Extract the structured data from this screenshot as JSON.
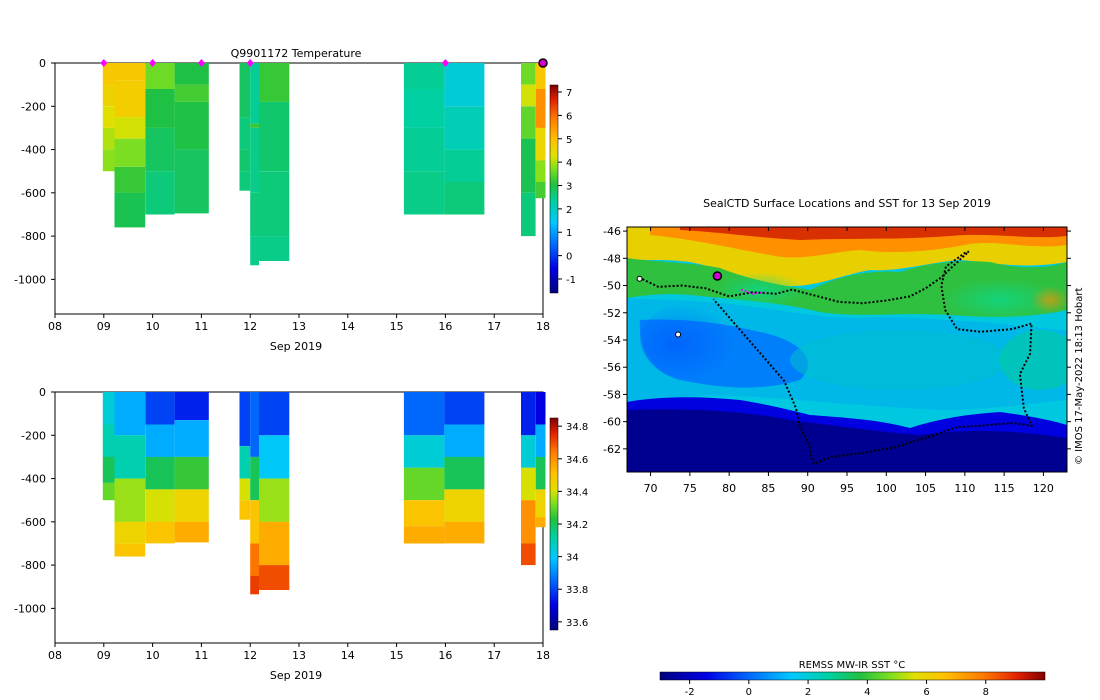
{
  "chart_data": [
    {
      "type": "heatmap",
      "name": "temperature-section",
      "title": "Q9901172  Temperature",
      "xlabel": "Sep 2019",
      "x_ticks": [
        "08",
        "09",
        "10",
        "11",
        "12",
        "13",
        "14",
        "15",
        "16",
        "17",
        "18"
      ],
      "x_range": [
        8,
        18
      ],
      "y_ticks": [
        0,
        -200,
        -400,
        -600,
        -800,
        -1000
      ],
      "y_range": [
        -1160,
        0
      ],
      "colorbar": {
        "min": -1.6,
        "max": 7.3,
        "ticks": [
          7,
          6,
          5,
          4,
          3,
          2,
          1,
          0,
          -1
        ],
        "labels": [
          "7",
          "6",
          "5",
          "4",
          "3",
          "2",
          "1",
          "0",
          "-1"
        ]
      },
      "markers_days": [
        9.0,
        10.0,
        11.0,
        12.0,
        16.0
      ],
      "current_marker_day": 18.0,
      "profiles": [
        {
          "x0": 8.98,
          "x1": 9.22,
          "depth": 500,
          "layers": [
            [
              0,
              4.8
            ],
            [
              100,
              4.6
            ],
            [
              200,
              4.3
            ],
            [
              300,
              4.0
            ],
            [
              400,
              3.8
            ]
          ]
        },
        {
          "x0": 9.22,
          "x1": 9.85,
          "depth": 760,
          "layers": [
            [
              0,
              4.8
            ],
            [
              80,
              4.7
            ],
            [
              250,
              4.2
            ],
            [
              350,
              3.7
            ],
            [
              480,
              3.2
            ],
            [
              600,
              2.9
            ]
          ]
        },
        {
          "x0": 9.85,
          "x1": 10.45,
          "depth": 700,
          "layers": [
            [
              0,
              3.6
            ],
            [
              120,
              3.0
            ],
            [
              300,
              2.8
            ],
            [
              500,
              2.6
            ]
          ]
        },
        {
          "x0": 10.45,
          "x1": 11.15,
          "depth": 695,
          "layers": [
            [
              0,
              3.0
            ],
            [
              100,
              3.3
            ],
            [
              180,
              3.0
            ],
            [
              400,
              2.8
            ]
          ]
        },
        {
          "x0": 11.78,
          "x1": 12.0,
          "depth": 590,
          "layers": [
            [
              0,
              2.8
            ],
            [
              250,
              2.6
            ],
            [
              400,
              2.7
            ],
            [
              500,
              2.6
            ]
          ]
        },
        {
          "x0": 12.0,
          "x1": 12.18,
          "depth": 935,
          "layers": [
            [
              0,
              2.4
            ],
            [
              280,
              3.2
            ],
            [
              300,
              2.5
            ],
            [
              600,
              2.6
            ],
            [
              800,
              2.5
            ]
          ]
        },
        {
          "x0": 12.18,
          "x1": 12.8,
          "depth": 915,
          "layers": [
            [
              0,
              3.2
            ],
            [
              180,
              2.7
            ],
            [
              500,
              2.6
            ],
            [
              800,
              2.5
            ]
          ]
        },
        {
          "x0": 15.15,
          "x1": 15.98,
          "depth": 700,
          "layers": [
            [
              0,
              2.4
            ],
            [
              120,
              2.3
            ],
            [
              300,
              2.4
            ],
            [
              500,
              2.5
            ]
          ]
        },
        {
          "x0": 15.98,
          "x1": 16.8,
          "depth": 700,
          "layers": [
            [
              0,
              1.8
            ],
            [
              200,
              2.1
            ],
            [
              400,
              2.4
            ],
            [
              550,
              2.6
            ]
          ]
        },
        {
          "x0": 17.55,
          "x1": 17.85,
          "depth": 800,
          "layers": [
            [
              0,
              3.6
            ],
            [
              100,
              4.2
            ],
            [
              200,
              3.5
            ],
            [
              350,
              2.9
            ],
            [
              600,
              2.6
            ]
          ]
        },
        {
          "x0": 17.85,
          "x1": 18.05,
          "depth": 625,
          "layers": [
            [
              0,
              4.8
            ],
            [
              120,
              5.6
            ],
            [
              300,
              4.5
            ],
            [
              450,
              3.8
            ],
            [
              550,
              3.3
            ]
          ]
        }
      ]
    },
    {
      "type": "heatmap",
      "name": "salinity-section",
      "title": "",
      "xlabel": "Sep 2019",
      "x_ticks": [
        "08",
        "09",
        "10",
        "11",
        "12",
        "13",
        "14",
        "15",
        "16",
        "17",
        "18"
      ],
      "x_range": [
        8,
        18
      ],
      "y_ticks": [
        0,
        -200,
        -400,
        -600,
        -800,
        -1000
      ],
      "y_range": [
        -1160,
        0
      ],
      "colorbar": {
        "min": 33.55,
        "max": 34.85,
        "ticks": [
          34.8,
          34.6,
          34.4,
          34.2,
          34.0,
          33.8,
          33.6
        ],
        "labels": [
          "34.8",
          "34.6",
          "34.4",
          "34.2",
          "34",
          "33.8",
          "33.6"
        ]
      },
      "profiles": [
        {
          "x0": 8.98,
          "x1": 9.22,
          "depth": 500,
          "layers": [
            [
              0,
              34.05
            ],
            [
              150,
              34.1
            ],
            [
              300,
              34.2
            ],
            [
              420,
              34.3
            ]
          ]
        },
        {
          "x0": 9.22,
          "x1": 9.85,
          "depth": 760,
          "layers": [
            [
              0,
              33.95
            ],
            [
              200,
              34.1
            ],
            [
              400,
              34.35
            ],
            [
              600,
              34.45
            ],
            [
              700,
              34.5
            ]
          ]
        },
        {
          "x0": 9.85,
          "x1": 10.45,
          "depth": 700,
          "layers": [
            [
              0,
              33.8
            ],
            [
              150,
              33.95
            ],
            [
              300,
              34.2
            ],
            [
              450,
              34.4
            ],
            [
              600,
              34.5
            ]
          ]
        },
        {
          "x0": 10.45,
          "x1": 11.15,
          "depth": 695,
          "layers": [
            [
              0,
              33.75
            ],
            [
              130,
              33.95
            ],
            [
              300,
              34.25
            ],
            [
              450,
              34.45
            ],
            [
              600,
              34.55
            ]
          ]
        },
        {
          "x0": 11.78,
          "x1": 12.0,
          "depth": 590,
          "layers": [
            [
              0,
              33.8
            ],
            [
              250,
              34.1
            ],
            [
              400,
              34.4
            ],
            [
              500,
              34.5
            ]
          ]
        },
        {
          "x0": 12.0,
          "x1": 12.18,
          "depth": 935,
          "layers": [
            [
              0,
              33.85
            ],
            [
              300,
              34.2
            ],
            [
              500,
              34.5
            ],
            [
              700,
              34.65
            ],
            [
              850,
              34.72
            ]
          ]
        },
        {
          "x0": 12.18,
          "x1": 12.8,
          "depth": 915,
          "layers": [
            [
              0,
              33.8
            ],
            [
              200,
              34.0
            ],
            [
              400,
              34.35
            ],
            [
              600,
              34.55
            ],
            [
              800,
              34.7
            ]
          ]
        },
        {
          "x0": 15.15,
          "x1": 15.98,
          "depth": 700,
          "layers": [
            [
              0,
              33.85
            ],
            [
              200,
              34.05
            ],
            [
              350,
              34.3
            ],
            [
              500,
              34.5
            ],
            [
              620,
              34.55
            ]
          ]
        },
        {
          "x0": 15.98,
          "x1": 16.8,
          "depth": 700,
          "layers": [
            [
              0,
              33.8
            ],
            [
              150,
              33.95
            ],
            [
              300,
              34.2
            ],
            [
              450,
              34.45
            ],
            [
              600,
              34.55
            ]
          ]
        },
        {
          "x0": 17.55,
          "x1": 17.85,
          "depth": 800,
          "layers": [
            [
              0,
              33.75
            ],
            [
              200,
              34.05
            ],
            [
              350,
              34.4
            ],
            [
              500,
              34.6
            ],
            [
              700,
              34.7
            ]
          ]
        },
        {
          "x0": 17.85,
          "x1": 18.05,
          "depth": 625,
          "layers": [
            [
              0,
              33.7
            ],
            [
              150,
              33.95
            ],
            [
              300,
              34.2
            ],
            [
              450,
              34.45
            ],
            [
              580,
              34.55
            ]
          ]
        }
      ]
    },
    {
      "type": "heatmap",
      "name": "sst-map",
      "title": "SealCTD Surface Locations and SST for 13 Sep 2019",
      "x_ticks": [
        "70",
        "75",
        "80",
        "85",
        "90",
        "95",
        "100",
        "105",
        "110",
        "115",
        "120"
      ],
      "x_range": [
        67,
        123
      ],
      "y_ticks": [
        "-46",
        "-48",
        "-50",
        "-52",
        "-54",
        "-56",
        "-58",
        "-60",
        "-62"
      ],
      "y_range": [
        -63.7,
        -45.7
      ],
      "colorbar": {
        "title": "REMSS MW-IR SST °C",
        "min": -3,
        "max": 10,
        "ticks": [
          "-2",
          "0",
          "2",
          "4",
          "6",
          "8"
        ]
      },
      "track": [
        [
          68.5,
          -49.4
        ],
        [
          71,
          -50.1
        ],
        [
          74,
          -50
        ],
        [
          77,
          -50.2
        ],
        [
          80,
          -50.8
        ],
        [
          83,
          -50.5
        ],
        [
          86,
          -50.6
        ],
        [
          88,
          -50.3
        ],
        [
          90,
          -50.6
        ],
        [
          92,
          -50.9
        ],
        [
          94,
          -51.2
        ],
        [
          97,
          -51.3
        ],
        [
          100,
          -51.1
        ],
        [
          103,
          -50.8
        ],
        [
          105,
          -50.2
        ],
        [
          107,
          -49.4
        ],
        [
          109,
          -48.3
        ],
        [
          110.5,
          -47.5
        ],
        [
          110,
          -47.6
        ],
        [
          107.6,
          -48.6
        ],
        [
          107,
          -50
        ],
        [
          107.5,
          -51.8
        ],
        [
          109,
          -53.2
        ],
        [
          112,
          -53.4
        ],
        [
          116,
          -53.2
        ],
        [
          118.5,
          -52.8
        ],
        [
          118.3,
          -55
        ],
        [
          117,
          -56.5
        ],
        [
          117.5,
          -59
        ],
        [
          118.5,
          -60.3
        ],
        [
          116,
          -60.1
        ],
        [
          112,
          -60.3
        ],
        [
          109,
          -60.4
        ],
        [
          106,
          -61
        ],
        [
          101,
          -61.9
        ],
        [
          97,
          -62.3
        ],
        [
          93,
          -62.6
        ],
        [
          90.8,
          -63.1
        ],
        [
          90.4,
          -62.5
        ],
        [
          90.2,
          -61.8
        ],
        [
          89.8,
          -61.2
        ],
        [
          89,
          -60.4
        ],
        [
          88.5,
          -59
        ],
        [
          87,
          -57
        ],
        [
          84,
          -55
        ],
        [
          81,
          -53
        ],
        [
          78,
          -51
        ]
      ],
      "magenta_track": [
        [
          81.5,
          -50.3
        ],
        [
          83,
          -50.6
        ],
        [
          84.5,
          -50.5
        ]
      ],
      "start_marker": [
        78.5,
        -49.3
      ],
      "colony_points": [
        [
          68.6,
          -49.5
        ],
        [
          78.5,
          -49.3
        ],
        [
          73.5,
          -53.6
        ]
      ],
      "credit": "© IMOS 17-May-2022 18:13 Hobart"
    }
  ]
}
